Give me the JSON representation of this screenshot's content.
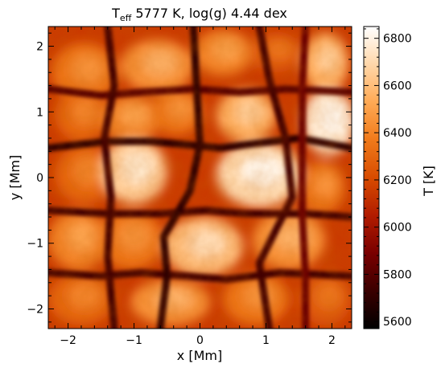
{
  "chart_data": {
    "type": "heatmap",
    "title": {
      "main": "T",
      "subscript": "eff",
      "rest": " 5777 K, log(g) 4.44 dex"
    },
    "xlabel": "x [Mm]",
    "ylabel": "y [Mm]",
    "xlim": [
      -2.3,
      2.3
    ],
    "ylim": [
      -2.3,
      2.3
    ],
    "xticks": [
      {
        "value": -2,
        "label": "−2"
      },
      {
        "value": -1,
        "label": "−1"
      },
      {
        "value": 0,
        "label": "0"
      },
      {
        "value": 1,
        "label": "1"
      },
      {
        "value": 2,
        "label": "2"
      }
    ],
    "yticks": [
      {
        "value": -2,
        "label": "−2"
      },
      {
        "value": -1,
        "label": "−1"
      },
      {
        "value": 0,
        "label": "0"
      },
      {
        "value": 1,
        "label": "1"
      },
      {
        "value": 2,
        "label": "2"
      }
    ],
    "colorbar": {
      "label": "T [K]",
      "range": [
        5570,
        6850
      ],
      "ticks": [
        {
          "value": 5600,
          "label": "5600"
        },
        {
          "value": 5800,
          "label": "5800"
        },
        {
          "value": 6000,
          "label": "6000"
        },
        {
          "value": 6200,
          "label": "6200"
        },
        {
          "value": 6400,
          "label": "6400"
        },
        {
          "value": 6600,
          "label": "6600"
        },
        {
          "value": 6800,
          "label": "6800"
        }
      ],
      "colormap": "gist_heat",
      "colors": [
        "#000000",
        "#3a0000",
        "#7a0000",
        "#b21c00",
        "#d84c00",
        "#f07a1a",
        "#ffaa55",
        "#ffd7aa",
        "#ffffff"
      ]
    },
    "granules": [
      {
        "x": -1.75,
        "y": 1.6,
        "rx": 0.5,
        "ry": 0.45,
        "T": 6350
      },
      {
        "x": -0.65,
        "y": 1.7,
        "rx": 0.55,
        "ry": 0.4,
        "T": 6450
      },
      {
        "x": 0.35,
        "y": 1.9,
        "rx": 0.45,
        "ry": 0.35,
        "T": 6400
      },
      {
        "x": 1.15,
        "y": 1.9,
        "rx": 0.4,
        "ry": 0.3,
        "T": 6250
      },
      {
        "x": 1.9,
        "y": 1.75,
        "rx": 0.35,
        "ry": 0.45,
        "T": 6550
      },
      {
        "x": -1.8,
        "y": 0.95,
        "rx": 0.4,
        "ry": 0.4,
        "T": 6300
      },
      {
        "x": -1.05,
        "y": 0.9,
        "rx": 0.45,
        "ry": 0.35,
        "T": 6400
      },
      {
        "x": -0.35,
        "y": 1.0,
        "rx": 0.4,
        "ry": 0.35,
        "T": 6350
      },
      {
        "x": 0.7,
        "y": 0.95,
        "rx": 0.45,
        "ry": 0.4,
        "T": 6550
      },
      {
        "x": 1.95,
        "y": 0.85,
        "rx": 0.4,
        "ry": 0.5,
        "T": 6750
      },
      {
        "x": -1.75,
        "y": 0.05,
        "rx": 0.45,
        "ry": 0.45,
        "T": 6300
      },
      {
        "x": -1.0,
        "y": 0.1,
        "rx": 0.5,
        "ry": 0.5,
        "T": 6650
      },
      {
        "x": 0.9,
        "y": 0.05,
        "rx": 0.65,
        "ry": 0.5,
        "T": 6700
      },
      {
        "x": 1.85,
        "y": -0.15,
        "rx": 0.35,
        "ry": 0.4,
        "T": 6350
      },
      {
        "x": -1.85,
        "y": -0.95,
        "rx": 0.45,
        "ry": 0.45,
        "T": 6400
      },
      {
        "x": -1.05,
        "y": -0.95,
        "rx": 0.5,
        "ry": 0.45,
        "T": 6350
      },
      {
        "x": 0.05,
        "y": -1.05,
        "rx": 0.6,
        "ry": 0.45,
        "T": 6600
      },
      {
        "x": 1.35,
        "y": -0.95,
        "rx": 0.55,
        "ry": 0.45,
        "T": 6450
      },
      {
        "x": -1.8,
        "y": -1.85,
        "rx": 0.5,
        "ry": 0.4,
        "T": 6300
      },
      {
        "x": -0.45,
        "y": -1.9,
        "rx": 0.6,
        "ry": 0.35,
        "T": 6450
      },
      {
        "x": 0.85,
        "y": -1.85,
        "rx": 0.5,
        "ry": 0.4,
        "T": 6350
      },
      {
        "x": 1.9,
        "y": -1.85,
        "rx": 0.4,
        "ry": 0.4,
        "T": 6250
      }
    ],
    "intergranular_lanes": [
      {
        "points": [
          [
            -2.3,
            0.45
          ],
          [
            -1.4,
            0.55
          ],
          [
            -0.75,
            0.55
          ],
          [
            -0.2,
            0.5
          ],
          [
            0.3,
            0.45
          ],
          [
            1.1,
            0.55
          ],
          [
            1.5,
            0.6
          ],
          [
            2.3,
            0.45
          ]
        ],
        "T": 5700
      },
      {
        "points": [
          [
            -2.3,
            -0.5
          ],
          [
            -1.4,
            -0.55
          ],
          [
            -0.6,
            -0.55
          ],
          [
            0.1,
            -0.5
          ],
          [
            0.7,
            -0.55
          ],
          [
            1.6,
            -0.55
          ],
          [
            2.3,
            -0.6
          ]
        ],
        "T": 5750
      },
      {
        "points": [
          [
            -2.3,
            -1.45
          ],
          [
            -1.5,
            -1.5
          ],
          [
            -0.9,
            -1.45
          ],
          [
            -0.2,
            -1.5
          ],
          [
            0.4,
            -1.55
          ],
          [
            1.2,
            -1.45
          ],
          [
            2.3,
            -1.5
          ]
        ],
        "T": 5750
      },
      {
        "points": [
          [
            -2.3,
            1.35
          ],
          [
            -1.5,
            1.25
          ],
          [
            -0.85,
            1.3
          ],
          [
            -0.1,
            1.35
          ],
          [
            0.6,
            1.3
          ],
          [
            1.3,
            1.35
          ],
          [
            2.3,
            1.3
          ]
        ],
        "T": 5800
      },
      {
        "points": [
          [
            -1.4,
            2.3
          ],
          [
            -1.3,
            1.4
          ],
          [
            -1.45,
            0.6
          ],
          [
            -1.35,
            -0.3
          ],
          [
            -1.4,
            -1.2
          ],
          [
            -1.3,
            -2.3
          ]
        ],
        "T": 5750
      },
      {
        "points": [
          [
            -0.1,
            2.3
          ],
          [
            -0.05,
            1.4
          ],
          [
            0.0,
            0.5
          ],
          [
            -0.15,
            -0.2
          ],
          [
            -0.55,
            -0.9
          ],
          [
            -0.5,
            -1.5
          ],
          [
            -0.6,
            -2.3
          ]
        ],
        "T": 5700
      },
      {
        "points": [
          [
            0.9,
            2.3
          ],
          [
            1.05,
            1.5
          ],
          [
            1.3,
            0.6
          ],
          [
            1.4,
            -0.3
          ],
          [
            0.9,
            -1.3
          ],
          [
            1.05,
            -2.3
          ]
        ],
        "T": 5750
      },
      {
        "points": [
          [
            1.6,
            2.3
          ],
          [
            1.55,
            1.4
          ],
          [
            1.55,
            0.6
          ],
          [
            1.55,
            -0.5
          ],
          [
            1.6,
            -1.5
          ],
          [
            1.6,
            -2.3
          ]
        ],
        "T": 5850
      }
    ],
    "background_T": 6150
  }
}
